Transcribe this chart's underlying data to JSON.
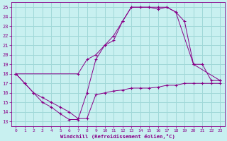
{
  "xlabel": "Windchill (Refroidissement éolien,°C)",
  "bg_color": "#c8f0f0",
  "grid_color": "#a0d8d8",
  "line_color": "#880088",
  "xlim": [
    -0.5,
    23.5
  ],
  "ylim": [
    12.5,
    25.5
  ],
  "xticks": [
    0,
    1,
    2,
    3,
    4,
    5,
    6,
    7,
    8,
    9,
    10,
    11,
    12,
    13,
    14,
    15,
    16,
    17,
    18,
    19,
    20,
    21,
    22,
    23
  ],
  "yticks": [
    13,
    14,
    15,
    16,
    17,
    18,
    19,
    20,
    21,
    22,
    23,
    24,
    25
  ],
  "line1_x": [
    0,
    1,
    2,
    3,
    4,
    5,
    6,
    7,
    8,
    9,
    10,
    11,
    12,
    13,
    14,
    15,
    16,
    17,
    18,
    19,
    20,
    21,
    22,
    23
  ],
  "line1_y": [
    18.0,
    17.0,
    16.0,
    15.0,
    14.5,
    13.8,
    13.2,
    13.2,
    16.0,
    19.5,
    21.0,
    21.5,
    23.5,
    25.0,
    25.0,
    25.0,
    24.8,
    25.0,
    24.5,
    23.5,
    19.0,
    19.0,
    17.3,
    17.3
  ],
  "line2_x": [
    0,
    7,
    8,
    9,
    10,
    11,
    12,
    13,
    14,
    15,
    16,
    17,
    18,
    20,
    23
  ],
  "line2_y": [
    18.0,
    18.0,
    19.5,
    20.0,
    21.0,
    22.0,
    23.5,
    25.0,
    25.0,
    25.0,
    25.0,
    25.0,
    24.5,
    19.0,
    17.3
  ],
  "line3_x": [
    0,
    1,
    2,
    3,
    4,
    5,
    6,
    7,
    8,
    9,
    10,
    11,
    12,
    13,
    14,
    15,
    16,
    17,
    18,
    19,
    20,
    21,
    22,
    23
  ],
  "line3_y": [
    18.0,
    17.0,
    16.0,
    15.5,
    15.0,
    14.5,
    14.0,
    13.3,
    13.3,
    15.8,
    16.0,
    16.2,
    16.3,
    16.5,
    16.5,
    16.5,
    16.6,
    16.8,
    16.8,
    17.0,
    17.0,
    17.0,
    17.0,
    17.0
  ]
}
